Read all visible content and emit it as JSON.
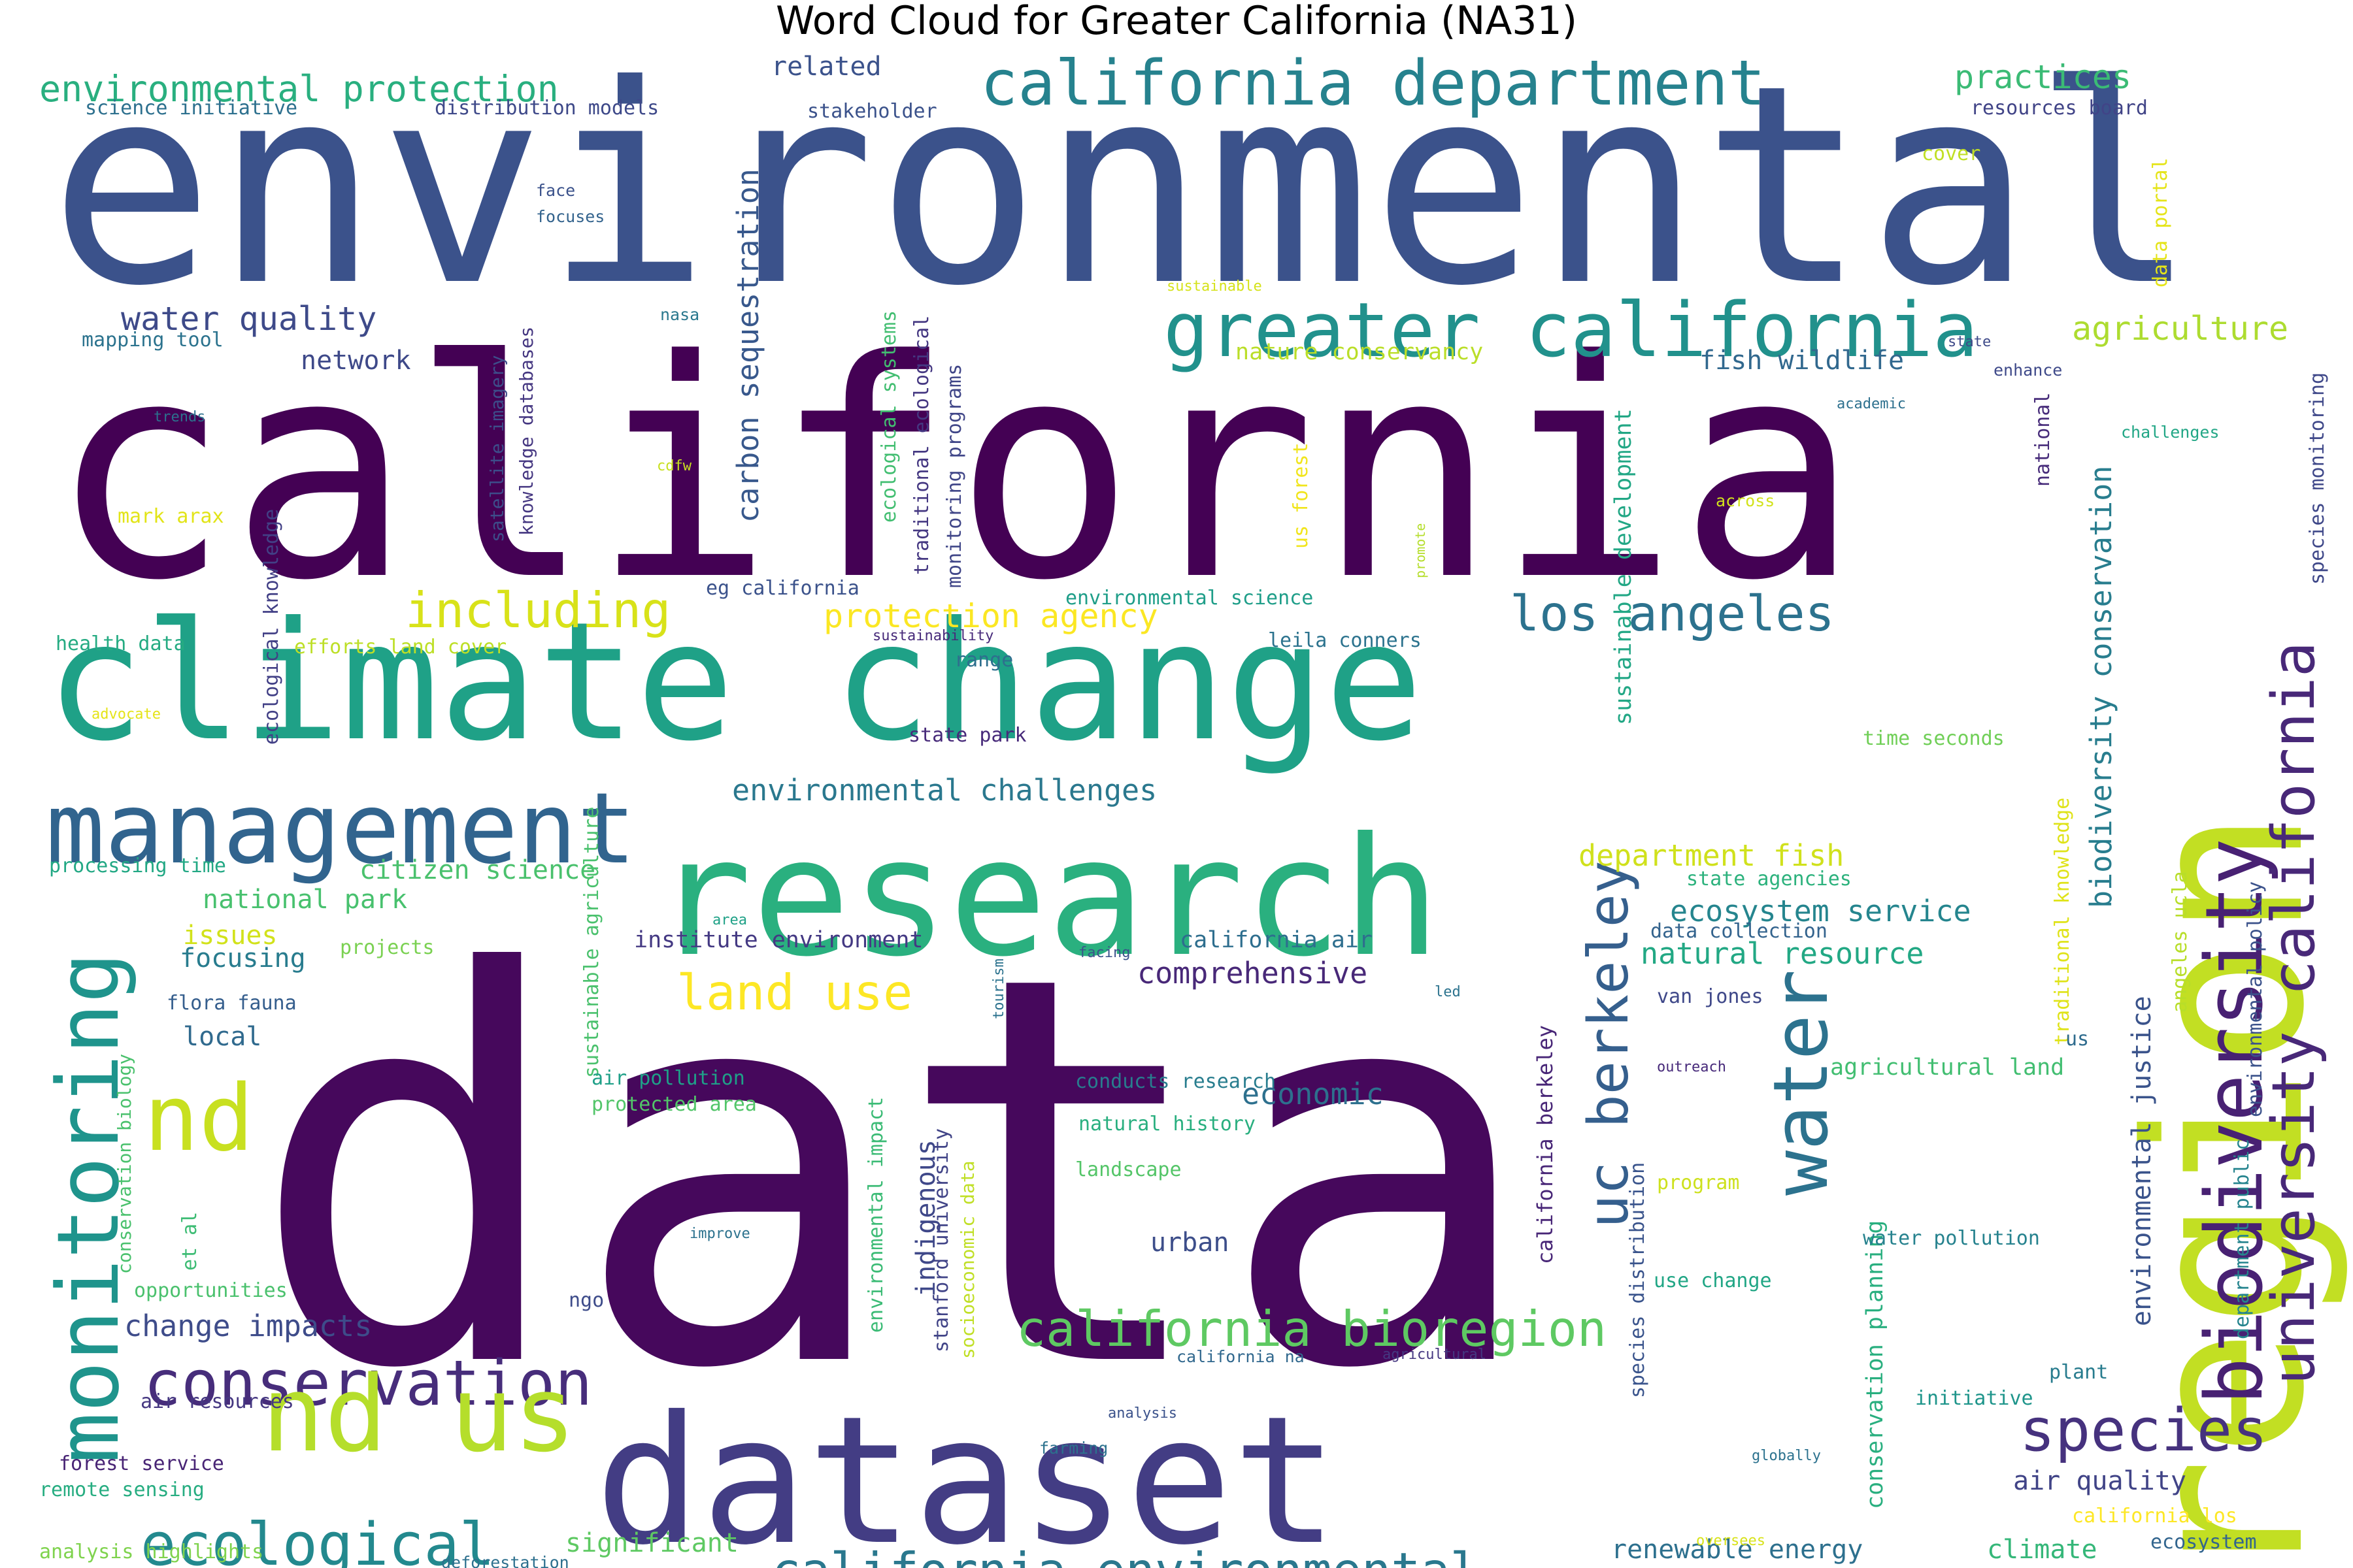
{
  "chart_data": {
    "type": "wordcloud",
    "title": "Word Cloud for Greater California (NA31)",
    "words": [
      {
        "text": "environmental",
        "color": "#3b528b"
      },
      {
        "text": "california",
        "color": "#440154"
      },
      {
        "text": "data",
        "color": "#46085c"
      },
      {
        "text": "climate change",
        "color": "#1fa187"
      },
      {
        "text": "research",
        "color": "#2ab07f"
      },
      {
        "text": "region",
        "color": "#c2df23"
      },
      {
        "text": "dataset",
        "color": "#433d84"
      },
      {
        "text": "management",
        "color": "#31648e"
      },
      {
        "text": "greater california",
        "color": "#21918c"
      },
      {
        "text": "california department",
        "color": "#26828e"
      },
      {
        "text": "biodiversity",
        "color": "#482173"
      },
      {
        "text": "university california",
        "color": "#482878"
      },
      {
        "text": "monitoring",
        "color": "#1f948c"
      },
      {
        "text": "conservation",
        "color": "#472d7b"
      },
      {
        "text": "nd us",
        "color": "#b5de2b"
      },
      {
        "text": "nd",
        "color": "#c8e020"
      },
      {
        "text": "species",
        "color": "#46327e"
      },
      {
        "text": "ecological",
        "color": "#23898e"
      },
      {
        "text": "california environmental",
        "color": "#2a788e"
      },
      {
        "text": "california bioregion",
        "color": "#5ec962"
      },
      {
        "text": "uc berkeley",
        "color": "#355f8d"
      },
      {
        "text": "water",
        "color": "#2c728e"
      },
      {
        "text": "los angeles",
        "color": "#2c728e"
      },
      {
        "text": "including",
        "color": "#d8e219"
      },
      {
        "text": "land use",
        "color": "#fde725"
      },
      {
        "text": "protection agency",
        "color": "#fbe723"
      },
      {
        "text": "environmental protection",
        "color": "#29af7f"
      },
      {
        "text": "water quality",
        "color": "#3e4a89"
      },
      {
        "text": "agriculture",
        "color": "#addc30"
      },
      {
        "text": "practices",
        "color": "#3bbb75"
      },
      {
        "text": "carbon sequestration",
        "color": "#38588c"
      },
      {
        "text": "biodiversity conservation",
        "color": "#287d8e"
      },
      {
        "text": "environmental challenges",
        "color": "#2a788e"
      },
      {
        "text": "change impacts",
        "color": "#3e4c8a"
      },
      {
        "text": "department fish",
        "color": "#d0e11c"
      },
      {
        "text": "ecosystem service",
        "color": "#25858e"
      },
      {
        "text": "natural resource",
        "color": "#22a884"
      },
      {
        "text": "comprehensive",
        "color": "#482878"
      },
      {
        "text": "citizen science",
        "color": "#4ac16d"
      },
      {
        "text": "national park",
        "color": "#48c16e"
      },
      {
        "text": "fish wildlife",
        "color": "#31688e"
      },
      {
        "text": "network",
        "color": "#3e4989"
      },
      {
        "text": "related",
        "color": "#3b528b"
      },
      {
        "text": "economic",
        "color": "#2d708e"
      },
      {
        "text": "environmental justice",
        "color": "#3a538b"
      },
      {
        "text": "renewable energy",
        "color": "#2d708e"
      },
      {
        "text": "air quality",
        "color": "#414487"
      },
      {
        "text": "climate",
        "color": "#35b779"
      },
      {
        "text": "focusing",
        "color": "#287c8e"
      },
      {
        "text": "local",
        "color": "#306a8e"
      },
      {
        "text": "urban",
        "color": "#3d4e8a"
      },
      {
        "text": "indigenous",
        "color": "#3f4889"
      },
      {
        "text": "significant",
        "color": "#5ec962"
      },
      {
        "text": "issues",
        "color": "#d2e21b"
      },
      {
        "text": "nature conservancy",
        "color": "#bade28"
      },
      {
        "text": "institute environment",
        "color": "#443983"
      },
      {
        "text": "california air",
        "color": "#2e6e8e"
      },
      {
        "text": "conservation planning",
        "color": "#29af7f"
      },
      {
        "text": "agricultural land",
        "color": "#42be71"
      },
      {
        "text": "sustainable development",
        "color": "#22a785"
      },
      {
        "text": "ecological knowledge",
        "color": "#424086"
      },
      {
        "text": "traditional ecological",
        "color": "#453882"
      },
      {
        "text": "monitoring programs",
        "color": "#404688"
      },
      {
        "text": "sustainable agriculture",
        "color": "#4ac16d"
      },
      {
        "text": "environmental impact",
        "color": "#3bbb75"
      },
      {
        "text": "ecological systems",
        "color": "#42be71"
      },
      {
        "text": "satellite imagery",
        "color": "#3d4d8a"
      },
      {
        "text": "knowledge databases",
        "color": "#453781"
      },
      {
        "text": "california berkeley",
        "color": "#482677"
      },
      {
        "text": "stanford university",
        "color": "#414487"
      },
      {
        "text": "socioeconomic data",
        "color": "#c0df25"
      },
      {
        "text": "species monitoring",
        "color": "#3f4889"
      },
      {
        "text": "traditional knowledge",
        "color": "#dfe318"
      },
      {
        "text": "department public",
        "color": "#25848e"
      },
      {
        "text": "environmental policy",
        "color": "#3b528b"
      },
      {
        "text": "angeles ucla",
        "color": "#b8de29"
      },
      {
        "text": "species distribution",
        "color": "#3a548c"
      },
      {
        "text": "conservation biology",
        "color": "#4ac16d"
      },
      {
        "text": "data portal",
        "color": "#e5e419"
      },
      {
        "text": "science initiative",
        "color": "#2d708e"
      },
      {
        "text": "distribution models",
        "color": "#3e4989"
      },
      {
        "text": "stakeholder",
        "color": "#3b528b"
      },
      {
        "text": "resources board",
        "color": "#414487"
      },
      {
        "text": "mapping tool",
        "color": "#2c738e"
      },
      {
        "text": "health data",
        "color": "#25ab82"
      },
      {
        "text": "efforts land cover",
        "color": "#bddf26"
      },
      {
        "text": "eg california",
        "color": "#3b528b"
      },
      {
        "text": "environmental science",
        "color": "#1f9e89"
      },
      {
        "text": "leila conners",
        "color": "#2c738e"
      },
      {
        "text": "range",
        "color": "#2e6f8e"
      },
      {
        "text": "state park",
        "color": "#472a7a"
      },
      {
        "text": "time seconds",
        "color": "#70cf57"
      },
      {
        "text": "state agencies",
        "color": "#2db27d"
      },
      {
        "text": "data collection",
        "color": "#33638d"
      },
      {
        "text": "van jones",
        "color": "#3f4889"
      },
      {
        "text": "processing time",
        "color": "#22a884"
      },
      {
        "text": "projects",
        "color": "#7ad151"
      },
      {
        "text": "flora fauna",
        "color": "#355e8d"
      },
      {
        "text": "air pollution",
        "color": "#1fa088"
      },
      {
        "text": "protected area",
        "color": "#52c569"
      },
      {
        "text": "conducts research",
        "color": "#287d8e"
      },
      {
        "text": "natural history",
        "color": "#29af7f"
      },
      {
        "text": "landscape",
        "color": "#54c568"
      },
      {
        "text": "program",
        "color": "#cde11d"
      },
      {
        "text": "water pollution",
        "color": "#26828e"
      },
      {
        "text": "use change",
        "color": "#21a685"
      },
      {
        "text": "opportunities",
        "color": "#4ac16d"
      },
      {
        "text": "air resources",
        "color": "#453781"
      },
      {
        "text": "forest service",
        "color": "#482475"
      },
      {
        "text": "remote sensing",
        "color": "#27ad81"
      },
      {
        "text": "analysis highlights",
        "color": "#7fd34e"
      },
      {
        "text": "california los",
        "color": "#fde725"
      },
      {
        "text": "ecosystem",
        "color": "#32658e"
      },
      {
        "text": "initiative",
        "color": "#1f958b"
      },
      {
        "text": "plant",
        "color": "#287c8e"
      },
      {
        "text": "et al",
        "color": "#3dbc74"
      },
      {
        "text": "ngo",
        "color": "#3e4c8a"
      },
      {
        "text": "us",
        "color": "#2f6c8e"
      },
      {
        "text": "national",
        "color": "#472c7a"
      },
      {
        "text": "mark arax",
        "color": "#e2e418"
      },
      {
        "text": "us forest",
        "color": "#f1e51d"
      },
      {
        "text": "cover",
        "color": "#c0df25"
      },
      {
        "text": "face",
        "color": "#3b528b"
      },
      {
        "text": "focuses",
        "color": "#33638d"
      },
      {
        "text": "nasa",
        "color": "#2a788e"
      },
      {
        "text": "trends",
        "color": "#2c718e"
      },
      {
        "text": "cdfw",
        "color": "#c8e020"
      },
      {
        "text": "sustainable",
        "color": "#d5e21a"
      },
      {
        "text": "state",
        "color": "#3e4a89"
      },
      {
        "text": "enhance",
        "color": "#3e4989"
      },
      {
        "text": "academic",
        "color": "#2d708e"
      },
      {
        "text": "challenges",
        "color": "#21a685"
      },
      {
        "text": "across",
        "color": "#d2e21b"
      },
      {
        "text": "promote",
        "color": "#b5de2b"
      },
      {
        "text": "sustainability",
        "color": "#472a7a"
      },
      {
        "text": "advocate",
        "color": "#e5e419"
      },
      {
        "text": "area",
        "color": "#1fa187"
      },
      {
        "text": "tourism",
        "color": "#2c728e"
      },
      {
        "text": "facing",
        "color": "#3b528b"
      },
      {
        "text": "led",
        "color": "#2c738e"
      },
      {
        "text": "outreach",
        "color": "#472a7a"
      },
      {
        "text": "improve",
        "color": "#2c728e"
      },
      {
        "text": "california na",
        "color": "#31688e"
      },
      {
        "text": "agricultural",
        "color": "#453781"
      },
      {
        "text": "analysis",
        "color": "#3b528b"
      },
      {
        "text": "farming",
        "color": "#2c728e"
      },
      {
        "text": "globally",
        "color": "#2c728e"
      },
      {
        "text": "oversees",
        "color": "#d8e219"
      },
      {
        "text": "deforestation",
        "color": "#2d708e"
      }
    ]
  }
}
